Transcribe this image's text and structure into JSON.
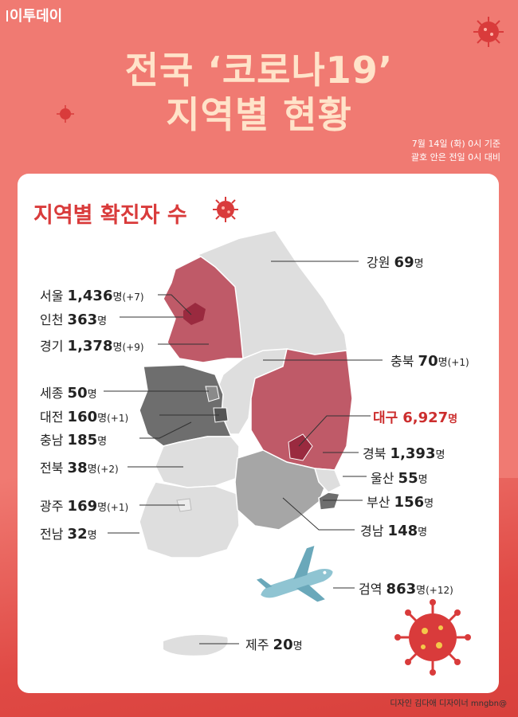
{
  "brand": "이투데이",
  "title_line1": "전국 ‘코로나19’",
  "title_line2": "지역별 현황",
  "basis_line1": "7월 14일 (화) 0시 기준",
  "basis_line2": "괄호 안은 전일 0시 대비",
  "section_title": "지역별 확진자 수",
  "credit": "디자인 김다애 디자이너 mngbn@",
  "regions": [
    {
      "key": "gangwon",
      "name": "강원",
      "count": "69",
      "unit": "명",
      "delta": ""
    },
    {
      "key": "seoul",
      "name": "서울",
      "count": "1,436",
      "unit": "명",
      "delta": "(+7)"
    },
    {
      "key": "incheon",
      "name": "인천",
      "count": "363",
      "unit": "명",
      "delta": ""
    },
    {
      "key": "gyeonggi",
      "name": "경기",
      "count": "1,378",
      "unit": "명",
      "delta": "(+9)"
    },
    {
      "key": "chungbuk",
      "name": "충북",
      "count": "70",
      "unit": "명",
      "delta": "(+1)"
    },
    {
      "key": "sejong",
      "name": "세종",
      "count": "50",
      "unit": "명",
      "delta": ""
    },
    {
      "key": "daejeon",
      "name": "대전",
      "count": "160",
      "unit": "명",
      "delta": "(+1)"
    },
    {
      "key": "chungnam",
      "name": "충남",
      "count": "185",
      "unit": "명",
      "delta": ""
    },
    {
      "key": "daegu",
      "name": "대구",
      "count": "6,927",
      "unit": "명",
      "delta": ""
    },
    {
      "key": "gyeongbuk",
      "name": "경북",
      "count": "1,393",
      "unit": "명",
      "delta": ""
    },
    {
      "key": "jeonbuk",
      "name": "전북",
      "count": "38",
      "unit": "명",
      "delta": "(+2)"
    },
    {
      "key": "ulsan",
      "name": "울산",
      "count": "55",
      "unit": "명",
      "delta": ""
    },
    {
      "key": "busan",
      "name": "부산",
      "count": "156",
      "unit": "명",
      "delta": ""
    },
    {
      "key": "gwangju",
      "name": "광주",
      "count": "169",
      "unit": "명",
      "delta": "(+1)"
    },
    {
      "key": "jeonnam",
      "name": "전남",
      "count": "32",
      "unit": "명",
      "delta": ""
    },
    {
      "key": "gyeongnam",
      "name": "경남",
      "count": "148",
      "unit": "명",
      "delta": ""
    },
    {
      "key": "quarantine",
      "name": "검역",
      "count": "863",
      "unit": "명",
      "delta": "(+12)"
    },
    {
      "key": "jeju",
      "name": "제주",
      "count": "20",
      "unit": "명",
      "delta": ""
    }
  ],
  "colors": {
    "background": "#f07a72",
    "title": "#ffe3c9",
    "highlight": "#d93b3b",
    "region_red": "#bf5a68",
    "region_dark_red": "#9a2a3f",
    "region_dark_gray": "#6e6e6e",
    "region_mid_gray": "#a6a6a6",
    "region_light_gray": "#dedede"
  },
  "icons": [
    "virus-icon",
    "airplane-icon"
  ]
}
